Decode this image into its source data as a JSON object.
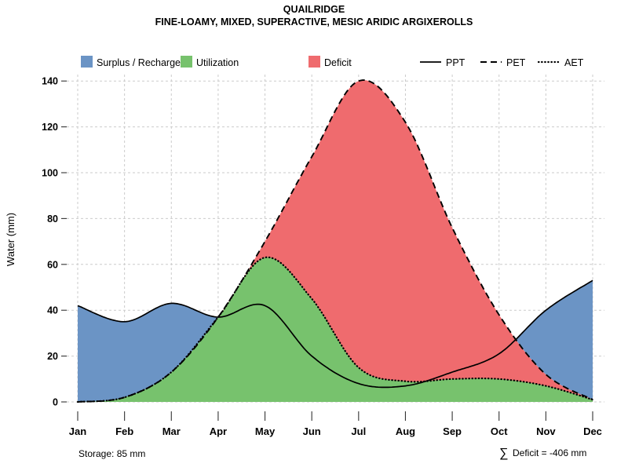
{
  "chart_data": {
    "type": "line",
    "title": "QUAILRIDGE",
    "subtitle": "FINE-LOAMY, MIXED, SUPERACTIVE, MESIC ARIDIC ARGIXEROLLS",
    "xlabel": "",
    "ylabel": "Water (mm)",
    "categories": [
      "Jan",
      "Feb",
      "Mar",
      "Apr",
      "May",
      "Jun",
      "Jul",
      "Aug",
      "Sep",
      "Oct",
      "Nov",
      "Dec"
    ],
    "ylim": [
      0,
      150
    ],
    "yticks": [
      0,
      20,
      40,
      60,
      80,
      100,
      120,
      140
    ],
    "grid": true,
    "legend_position": "top",
    "series": [
      {
        "name": "PPT",
        "style": "solid",
        "values": [
          42,
          35,
          43,
          37,
          42,
          20,
          8,
          7,
          13,
          21,
          40,
          53
        ]
      },
      {
        "name": "PET",
        "style": "dashed",
        "values": [
          0,
          2,
          13,
          37,
          70,
          107,
          140,
          122,
          76,
          38,
          12,
          1
        ]
      },
      {
        "name": "AET",
        "style": "dotted",
        "values": [
          0,
          2,
          13,
          37,
          63,
          45,
          15,
          9,
          10,
          10,
          7,
          1
        ]
      }
    ],
    "areas": [
      {
        "name": "Surplus / Recharge",
        "color": "#6B94C5",
        "rule": "between PPT and PET where PPT > PET"
      },
      {
        "name": "Utilization",
        "color": "#77C26D",
        "rule": "under AET"
      },
      {
        "name": "Deficit",
        "color": "#EF6B6E",
        "rule": "between PET and AET where PET > AET"
      }
    ]
  },
  "annotations": {
    "storage_label": "Storage: 85 mm",
    "deficit_symbol": "∑",
    "deficit_label": "Deficit = -406 mm"
  }
}
